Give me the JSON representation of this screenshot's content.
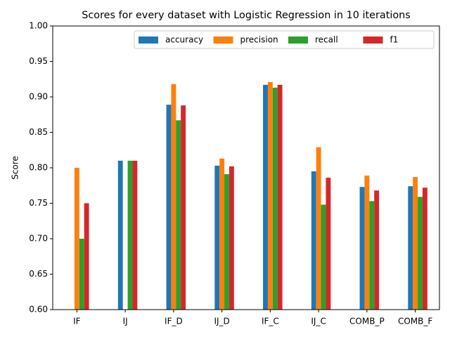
{
  "chart_data": {
    "type": "bar",
    "title": "Scores for every dataset with Logistic Regression in 10 iterations",
    "y_label": "Score",
    "categories": [
      "IF",
      "IJ",
      "IF_D",
      "IJ_D",
      "IF_C",
      "IJ_C",
      "COMB_P",
      "COMB_F"
    ],
    "series": [
      {
        "name": "accuracy",
        "color": "#1f77b4",
        "values": [
          0.6,
          0.81,
          0.889,
          0.803,
          0.917,
          0.795,
          0.773,
          0.774
        ]
      },
      {
        "name": "precision",
        "color": "#ff7f0e",
        "values": [
          0.8,
          0.6,
          0.918,
          0.813,
          0.921,
          0.829,
          0.789,
          0.787
        ]
      },
      {
        "name": "recall",
        "color": "#2ca02c",
        "values": [
          0.7,
          0.81,
          0.867,
          0.791,
          0.913,
          0.748,
          0.753,
          0.759
        ]
      },
      {
        "name": "f1",
        "color": "#d62728",
        "values": [
          0.75,
          0.81,
          0.888,
          0.802,
          0.917,
          0.786,
          0.768,
          0.772
        ]
      }
    ],
    "ylim": [
      0.6,
      1.0
    ],
    "yticks": [
      {
        "value": 0.6,
        "label": "0.60"
      },
      {
        "value": 0.65,
        "label": "0.65"
      },
      {
        "value": 0.7,
        "label": "0.70"
      },
      {
        "value": 0.75,
        "label": "0.75"
      },
      {
        "value": 0.8,
        "label": "0.80"
      },
      {
        "value": 0.85,
        "label": "0.85"
      },
      {
        "value": 0.9,
        "label": "0.90"
      },
      {
        "value": 0.95,
        "label": "0.95"
      },
      {
        "value": 1.0,
        "label": "1.00"
      }
    ],
    "legend": "upper right"
  }
}
